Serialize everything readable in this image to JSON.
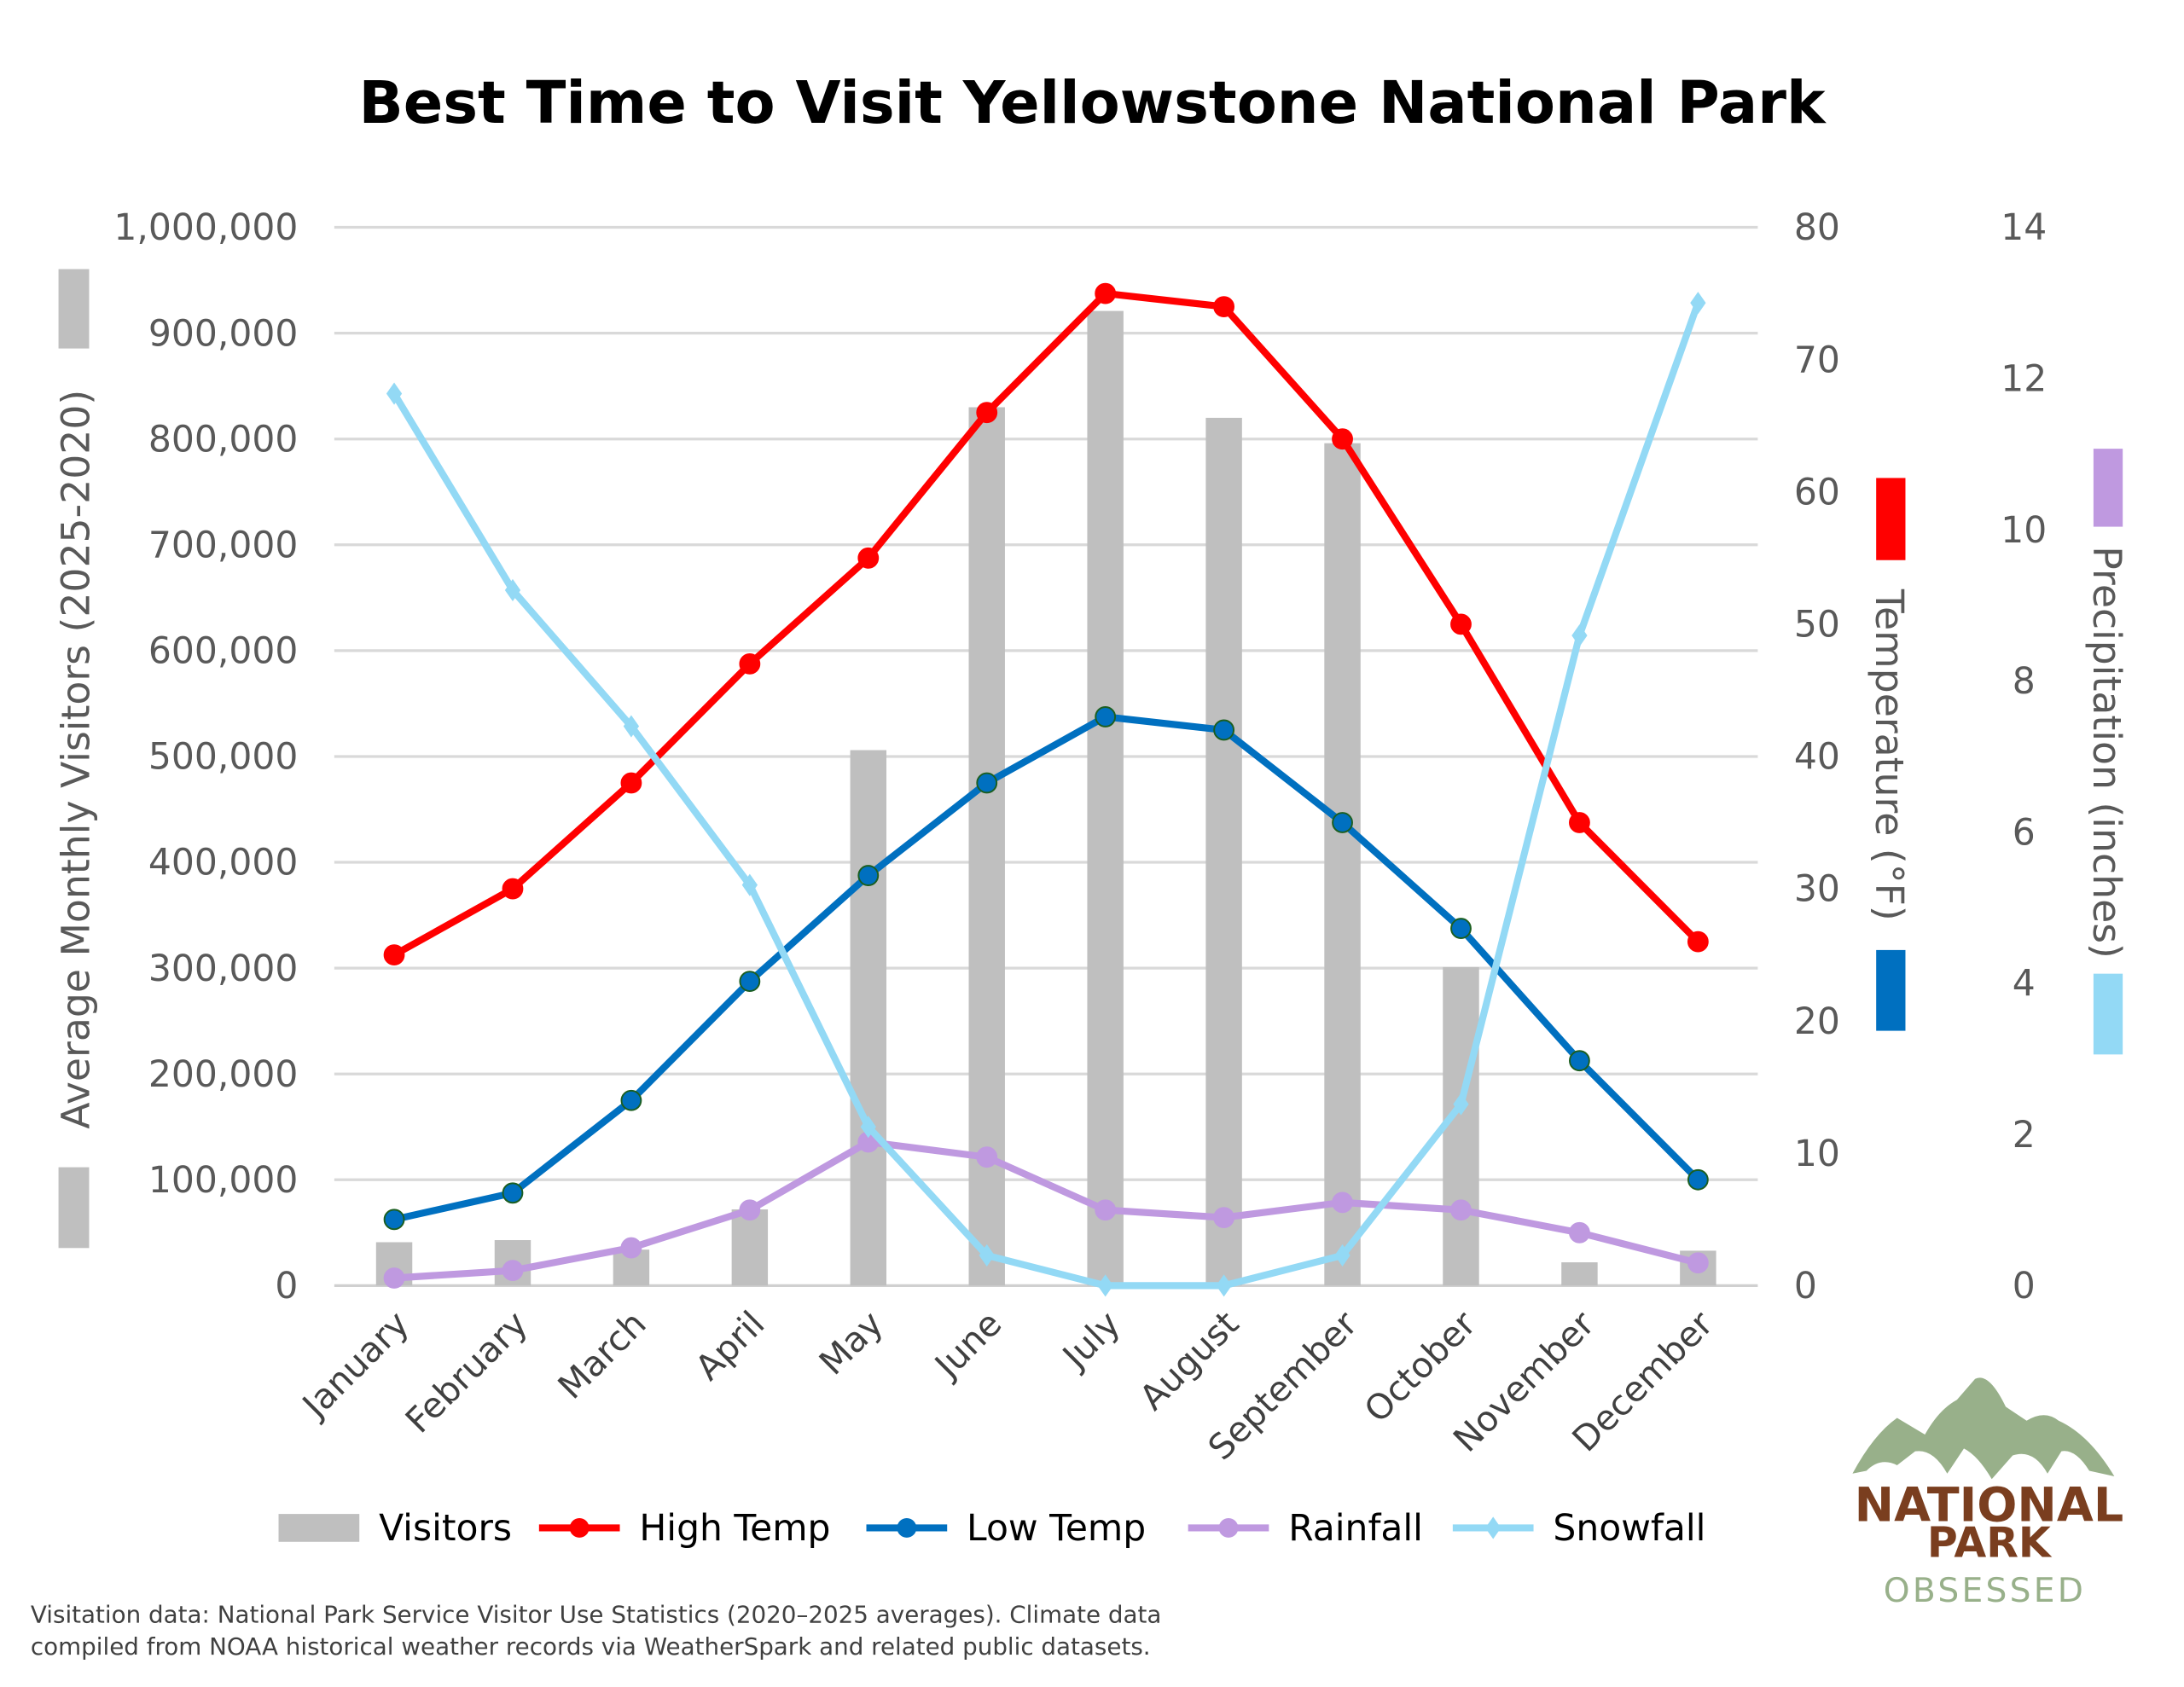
{
  "chart_data": {
    "type": "bar+line",
    "title": "Best Time to Visit Yellowstone National Park",
    "categories": [
      "January",
      "February",
      "March",
      "April",
      "May",
      "June",
      "July",
      "August",
      "September",
      "October",
      "November",
      "December"
    ],
    "axes": {
      "left": {
        "label": "Average Monthly Visitors (2025-2020)",
        "range": [
          0,
          1000000
        ],
        "ticks": [
          "0",
          "100,000",
          "200,000",
          "300,000",
          "400,000",
          "500,000",
          "600,000",
          "700,000",
          "800,000",
          "900,000",
          "1,000,000"
        ]
      },
      "right1": {
        "label": "Temperature (°F)",
        "range": [
          0,
          80
        ],
        "ticks": [
          "0",
          "10",
          "20",
          "30",
          "40",
          "50",
          "60",
          "70",
          "80"
        ]
      },
      "right2": {
        "label": "Precipitation (inches)",
        "range": [
          0,
          14
        ],
        "ticks": [
          "0",
          "2",
          "4",
          "6",
          "8",
          "10",
          "12",
          "14"
        ]
      }
    },
    "grid": true,
    "legend_position": "bottom",
    "series": [
      {
        "name": "Visitors",
        "type": "bar",
        "axis": "left",
        "color": "#bfbfbf",
        "values": [
          41000,
          43000,
          34000,
          72000,
          506000,
          830000,
          921000,
          820000,
          796000,
          301000,
          22000,
          33000
        ]
      },
      {
        "name": "High Temp",
        "type": "line",
        "axis": "right1",
        "color": "#ff0000",
        "marker": "circle",
        "values": [
          25,
          30,
          38,
          47,
          55,
          66,
          75,
          74,
          64,
          50,
          35,
          26
        ]
      },
      {
        "name": "Low Temp",
        "type": "line",
        "axis": "right1",
        "color": "#0070c0",
        "marker": "circle",
        "values": [
          5,
          7,
          14,
          23,
          31,
          38,
          43,
          42,
          35,
          27,
          17,
          8
        ]
      },
      {
        "name": "Rainfall",
        "type": "line",
        "axis": "right2",
        "color": "#bf99e0",
        "marker": "circle",
        "values": [
          0.1,
          0.2,
          0.5,
          1.0,
          1.9,
          1.7,
          1.0,
          0.9,
          1.1,
          1.0,
          0.7,
          0.3
        ]
      },
      {
        "name": "Snowfall",
        "type": "line",
        "axis": "right2",
        "color": "#93d9f5",
        "marker": "diamond",
        "values": [
          11.8,
          9.2,
          7.4,
          5.3,
          2.1,
          0.4,
          0,
          0,
          0.4,
          2.4,
          8.6,
          13.0
        ]
      }
    ]
  },
  "footnote": [
    "Visitation data: National Park Service Visitor Use Statistics (2020–2025 averages). Climate data",
    "compiled from NOAA historical weather records via WeatherSpark and related public datasets."
  ],
  "logo": {
    "line1": "NATIONAL",
    "line2": "PARK",
    "line3": "OBSESSED",
    "mountain_color": "#98b08a",
    "text_color": "#7a3e1f"
  }
}
